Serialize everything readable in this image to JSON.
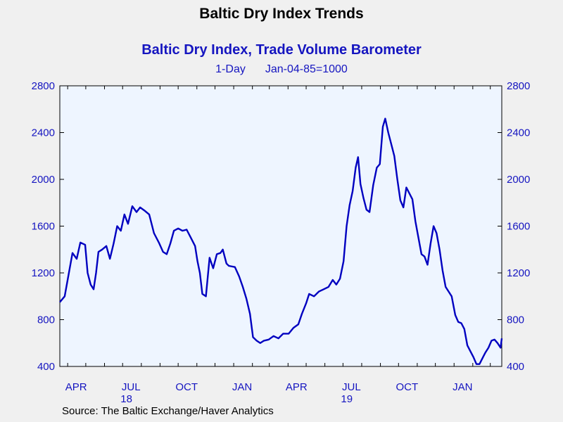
{
  "page_title": "Baltic Dry Index Trends",
  "source": "Source:  The Baltic Exchange/Haver Analytics",
  "chart_data": {
    "type": "line",
    "title": "Baltic Dry Index, Trade Volume Barometer",
    "subtitle_left": "1-Day",
    "subtitle_right": "Jan-04-85=1000",
    "xlabel": "",
    "ylabel": "",
    "ylim": [
      400,
      2800
    ],
    "y_ticks": [
      400,
      800,
      1200,
      1600,
      2000,
      2400,
      2800
    ],
    "y_tick_labels": [
      "400",
      "800",
      "1200",
      "1600",
      "2000",
      "2400",
      "2800"
    ],
    "x_range": [
      "2018-03-19",
      "2020-03-20"
    ],
    "x_ticks": [
      {
        "date": "2018-04-15",
        "label": "APR",
        "year": ""
      },
      {
        "date": "2018-07-15",
        "label": "JUL",
        "year": "18"
      },
      {
        "date": "2018-10-15",
        "label": "OCT",
        "year": ""
      },
      {
        "date": "2019-01-15",
        "label": "JAN",
        "year": ""
      },
      {
        "date": "2019-04-15",
        "label": "APR",
        "year": ""
      },
      {
        "date": "2019-07-15",
        "label": "JUL",
        "year": "19"
      },
      {
        "date": "2019-10-15",
        "label": "OCT",
        "year": ""
      },
      {
        "date": "2020-01-15",
        "label": "JAN",
        "year": ""
      }
    ],
    "grid": false,
    "series": [
      {
        "name": "",
        "color": "#0000c0",
        "points": [
          [
            "2018-03-19",
            950
          ],
          [
            "2018-03-27",
            1000
          ],
          [
            "2018-04-03",
            1200
          ],
          [
            "2018-04-09",
            1370
          ],
          [
            "2018-04-16",
            1320
          ],
          [
            "2018-04-22",
            1460
          ],
          [
            "2018-04-30",
            1440
          ],
          [
            "2018-05-04",
            1200
          ],
          [
            "2018-05-09",
            1100
          ],
          [
            "2018-05-14",
            1060
          ],
          [
            "2018-05-18",
            1200
          ],
          [
            "2018-05-22",
            1380
          ],
          [
            "2018-05-28",
            1400
          ],
          [
            "2018-06-04",
            1430
          ],
          [
            "2018-06-10",
            1320
          ],
          [
            "2018-06-16",
            1450
          ],
          [
            "2018-06-22",
            1600
          ],
          [
            "2018-06-28",
            1560
          ],
          [
            "2018-07-04",
            1700
          ],
          [
            "2018-07-10",
            1620
          ],
          [
            "2018-07-17",
            1770
          ],
          [
            "2018-07-24",
            1720
          ],
          [
            "2018-07-30",
            1760
          ],
          [
            "2018-08-07",
            1730
          ],
          [
            "2018-08-14",
            1700
          ],
          [
            "2018-08-22",
            1540
          ],
          [
            "2018-08-30",
            1460
          ],
          [
            "2018-09-06",
            1380
          ],
          [
            "2018-09-12",
            1360
          ],
          [
            "2018-09-18",
            1450
          ],
          [
            "2018-09-24",
            1560
          ],
          [
            "2018-10-01",
            1580
          ],
          [
            "2018-10-08",
            1560
          ],
          [
            "2018-10-15",
            1570
          ],
          [
            "2018-10-22",
            1500
          ],
          [
            "2018-10-29",
            1430
          ],
          [
            "2018-11-02",
            1300
          ],
          [
            "2018-11-06",
            1200
          ],
          [
            "2018-11-10",
            1020
          ],
          [
            "2018-11-16",
            1000
          ],
          [
            "2018-11-22",
            1330
          ],
          [
            "2018-11-28",
            1240
          ],
          [
            "2018-12-04",
            1360
          ],
          [
            "2018-12-10",
            1370
          ],
          [
            "2018-12-14",
            1400
          ],
          [
            "2018-12-20",
            1280
          ],
          [
            "2018-12-24",
            1260
          ],
          [
            "2019-01-03",
            1250
          ],
          [
            "2019-01-10",
            1170
          ],
          [
            "2019-01-16",
            1080
          ],
          [
            "2019-01-22",
            980
          ],
          [
            "2019-01-28",
            850
          ],
          [
            "2019-02-02",
            650
          ],
          [
            "2019-02-08",
            620
          ],
          [
            "2019-02-14",
            600
          ],
          [
            "2019-02-20",
            620
          ],
          [
            "2019-02-28",
            630
          ],
          [
            "2019-03-08",
            660
          ],
          [
            "2019-03-16",
            640
          ],
          [
            "2019-03-24",
            680
          ],
          [
            "2019-04-02",
            680
          ],
          [
            "2019-04-10",
            730
          ],
          [
            "2019-04-18",
            760
          ],
          [
            "2019-04-24",
            850
          ],
          [
            "2019-05-01",
            940
          ],
          [
            "2019-05-06",
            1020
          ],
          [
            "2019-05-14",
            1000
          ],
          [
            "2019-05-22",
            1040
          ],
          [
            "2019-05-30",
            1060
          ],
          [
            "2019-06-07",
            1080
          ],
          [
            "2019-06-14",
            1140
          ],
          [
            "2019-06-20",
            1100
          ],
          [
            "2019-06-26",
            1150
          ],
          [
            "2019-07-02",
            1300
          ],
          [
            "2019-07-07",
            1600
          ],
          [
            "2019-07-12",
            1780
          ],
          [
            "2019-07-17",
            1900
          ],
          [
            "2019-07-22",
            2100
          ],
          [
            "2019-07-26",
            2190
          ],
          [
            "2019-07-30",
            1960
          ],
          [
            "2019-08-04",
            1840
          ],
          [
            "2019-08-09",
            1740
          ],
          [
            "2019-08-14",
            1720
          ],
          [
            "2019-08-20",
            1950
          ],
          [
            "2019-08-26",
            2100
          ],
          [
            "2019-08-31",
            2130
          ],
          [
            "2019-09-05",
            2450
          ],
          [
            "2019-09-09",
            2520
          ],
          [
            "2019-09-14",
            2400
          ],
          [
            "2019-09-19",
            2300
          ],
          [
            "2019-09-24",
            2200
          ],
          [
            "2019-09-29",
            2000
          ],
          [
            "2019-10-04",
            1820
          ],
          [
            "2019-10-09",
            1760
          ],
          [
            "2019-10-14",
            1930
          ],
          [
            "2019-10-19",
            1880
          ],
          [
            "2019-10-24",
            1830
          ],
          [
            "2019-10-29",
            1640
          ],
          [
            "2019-11-03",
            1500
          ],
          [
            "2019-11-08",
            1360
          ],
          [
            "2019-11-13",
            1340
          ],
          [
            "2019-11-18",
            1270
          ],
          [
            "2019-11-23",
            1450
          ],
          [
            "2019-11-28",
            1600
          ],
          [
            "2019-12-03",
            1540
          ],
          [
            "2019-12-08",
            1400
          ],
          [
            "2019-12-13",
            1220
          ],
          [
            "2019-12-18",
            1080
          ],
          [
            "2019-12-28",
            1000
          ],
          [
            "2020-01-03",
            840
          ],
          [
            "2020-01-08",
            780
          ],
          [
            "2020-01-13",
            770
          ],
          [
            "2020-01-18",
            720
          ],
          [
            "2020-01-23",
            580
          ],
          [
            "2020-01-28",
            530
          ],
          [
            "2020-02-02",
            480
          ],
          [
            "2020-02-07",
            420
          ],
          [
            "2020-02-12",
            420
          ],
          [
            "2020-02-17",
            470
          ],
          [
            "2020-02-22",
            520
          ],
          [
            "2020-02-27",
            560
          ],
          [
            "2020-03-03",
            620
          ],
          [
            "2020-03-08",
            630
          ],
          [
            "2020-03-13",
            600
          ],
          [
            "2020-03-18",
            560
          ],
          [
            "2020-03-20",
            640
          ]
        ]
      }
    ]
  }
}
